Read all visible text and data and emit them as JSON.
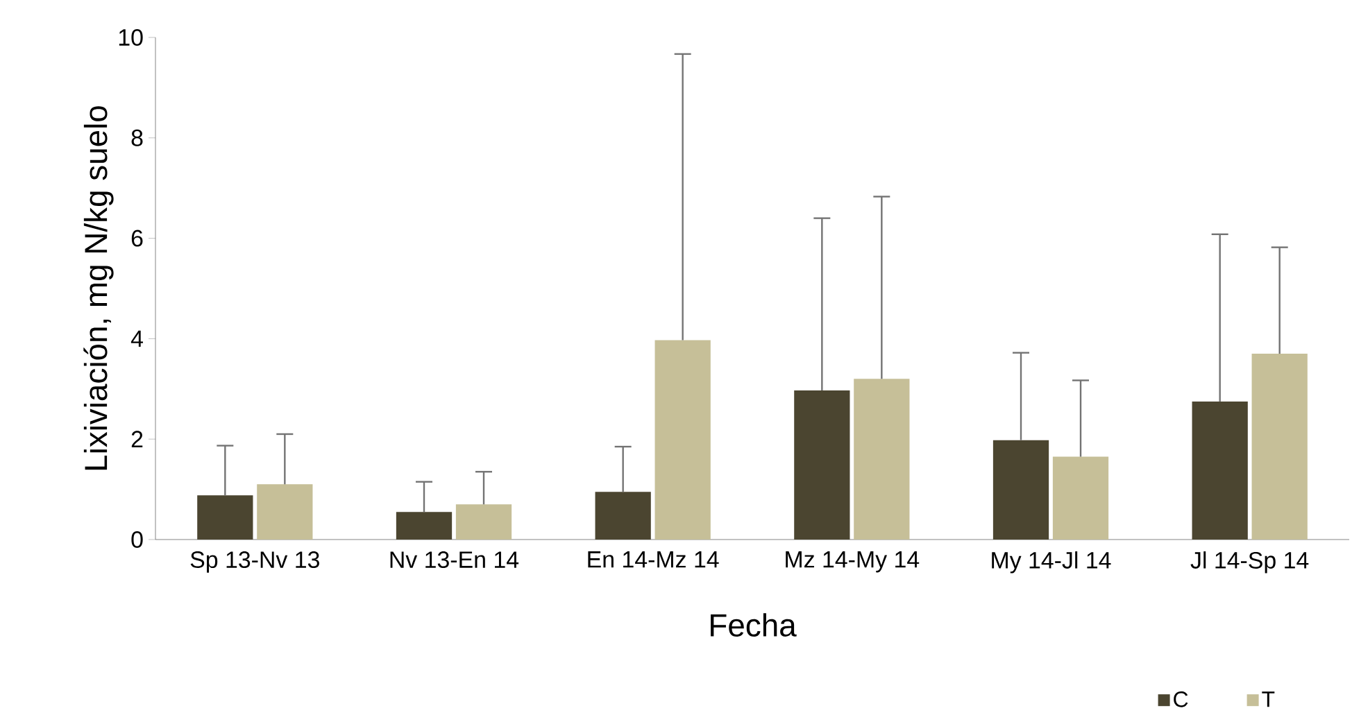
{
  "chart_data": {
    "type": "bar",
    "xlabel": "Fecha",
    "ylabel": "Lixiviación, mg N/kg suelo",
    "categories": [
      "Sp 13-Nv 13",
      "Nv 13-En 14",
      "En 14-Mz 14",
      "Mz 14-My 14",
      "My 14-Jl 14",
      "Jl 14-Sp 14"
    ],
    "series": [
      {
        "name": "C",
        "color": "#4b4530",
        "values": [
          0.88,
          0.55,
          0.95,
          2.97,
          1.98,
          2.75
        ],
        "errors": [
          [
            0.88,
            1.87
          ],
          [
            0.55,
            1.15
          ],
          [
            0.95,
            1.85
          ],
          [
            2.97,
            6.4
          ],
          [
            1.98,
            3.72
          ],
          [
            2.75,
            6.08
          ]
        ]
      },
      {
        "name": "T",
        "color": "#c6bf98",
        "values": [
          1.1,
          0.7,
          3.97,
          3.2,
          1.65,
          3.7
        ],
        "errors": [
          [
            1.1,
            2.1
          ],
          [
            0.7,
            1.35
          ],
          [
            3.97,
            9.67
          ],
          [
            3.2,
            6.83
          ],
          [
            1.65,
            3.17
          ],
          [
            3.7,
            5.82
          ]
        ]
      }
    ],
    "ylim": [
      0,
      10
    ],
    "yticks": [
      0,
      2,
      4,
      6,
      8,
      10
    ],
    "grid": false,
    "legend": "bottom right"
  }
}
